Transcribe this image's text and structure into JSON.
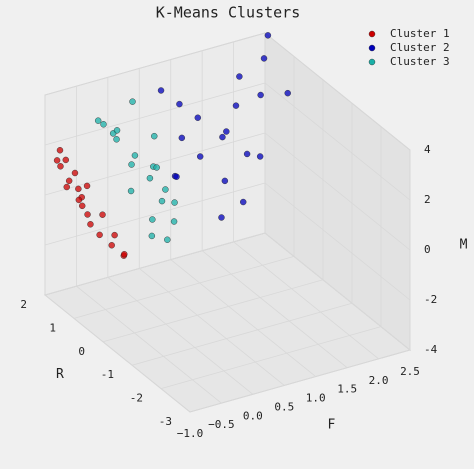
{
  "chart_data": {
    "type": "scatter3d",
    "title": "K-Means Clusters",
    "xlabel": "R",
    "ylabel": "F",
    "zlabel": "M",
    "xlim": [
      -3,
      2
    ],
    "ylim": [
      -1,
      2.5
    ],
    "zlim": [
      -4,
      4
    ],
    "xticks": [
      -3,
      -2,
      -1,
      0,
      1,
      2
    ],
    "yticks": [
      {
        "value": -1,
        "label": "−1.0"
      },
      {
        "value": -0.5,
        "label": "−0.5"
      },
      {
        "value": 0,
        "label": "0.0"
      },
      {
        "value": 0.5,
        "label": "0.5"
      },
      {
        "value": 1,
        "label": "1.0"
      },
      {
        "value": 1.5,
        "label": "1.5"
      },
      {
        "value": 2,
        "label": "2.0"
      },
      {
        "value": 2.5,
        "label": "2.5"
      }
    ],
    "zticks": [
      -4,
      -2,
      0,
      2,
      4
    ],
    "grid": true,
    "legend": "upper right",
    "series": [
      {
        "name": "Cluster 1",
        "color": "#cc0000",
        "x": [
          1.8,
          1.6,
          1.9,
          1.4,
          1.2,
          1.7,
          1.5,
          1.0,
          1.3,
          1.9,
          1.1,
          0.8,
          1.6,
          1.4,
          1.8,
          0.9,
          1.2,
          1.7,
          1.5,
          1.0
        ],
        "y": [
          -0.9,
          -0.8,
          -0.7,
          -0.6,
          -0.5,
          -0.9,
          -0.7,
          -0.4,
          -0.6,
          -0.8,
          -0.5,
          -0.3,
          -0.6,
          -0.8,
          -0.5,
          -0.4,
          -0.7,
          -0.6,
          -0.9,
          -0.2
        ],
        "z": [
          1.5,
          0.8,
          0.2,
          -0.5,
          -1.2,
          2.0,
          0.5,
          -1.5,
          -0.8,
          1.1,
          -0.3,
          -1.8,
          0.0,
          1.3,
          -0.6,
          -1.0,
          0.9,
          -0.2,
          1.8,
          -2.0
        ]
      },
      {
        "name": "Cluster 2",
        "color": "#0000bb",
        "x": [
          1.9,
          1.7,
          1.5,
          1.3,
          1.1,
          1.8,
          1.6,
          1.4,
          1.2,
          1.0,
          0.8,
          1.7,
          1.5,
          1.9,
          1.2,
          0.9,
          1.6,
          1.3,
          1.0,
          1.8
        ],
        "y": [
          0.8,
          1.0,
          1.2,
          1.5,
          1.8,
          2.0,
          2.3,
          0.9,
          1.1,
          1.4,
          1.6,
          1.9,
          2.2,
          2.5,
          0.7,
          1.3,
          1.7,
          2.1,
          2.4,
          1.0
        ],
        "z": [
          3.0,
          2.5,
          2.0,
          1.2,
          0.5,
          2.8,
          3.5,
          1.5,
          0.8,
          -0.2,
          -1.0,
          1.8,
          2.2,
          4.0,
          0.3,
          -1.5,
          1.0,
          0.0,
          2.6,
          -0.5
        ]
      },
      {
        "name": "Cluster 3",
        "color": "#1ab0a8",
        "x": [
          1.9,
          1.7,
          1.5,
          1.2,
          1.0,
          0.8,
          1.6,
          1.4,
          1.8,
          1.1,
          0.9,
          1.3,
          1.7,
          1.5,
          0.6,
          1.2,
          1.9,
          1.0,
          1.4,
          0.7
        ],
        "y": [
          -0.2,
          0.0,
          0.2,
          0.3,
          0.4,
          0.5,
          -0.1,
          0.1,
          0.3,
          0.5,
          0.2,
          0.4,
          0.6,
          -0.3,
          0.3,
          0.0,
          0.1,
          0.6,
          0.5,
          0.1
        ],
        "z": [
          2.5,
          1.8,
          1.2,
          0.5,
          -0.3,
          -1.0,
          2.2,
          1.0,
          3.0,
          0.0,
          -0.8,
          0.8,
          1.5,
          2.8,
          -1.4,
          0.2,
          1.9,
          -0.5,
          0.6,
          -1.2
        ]
      }
    ]
  }
}
